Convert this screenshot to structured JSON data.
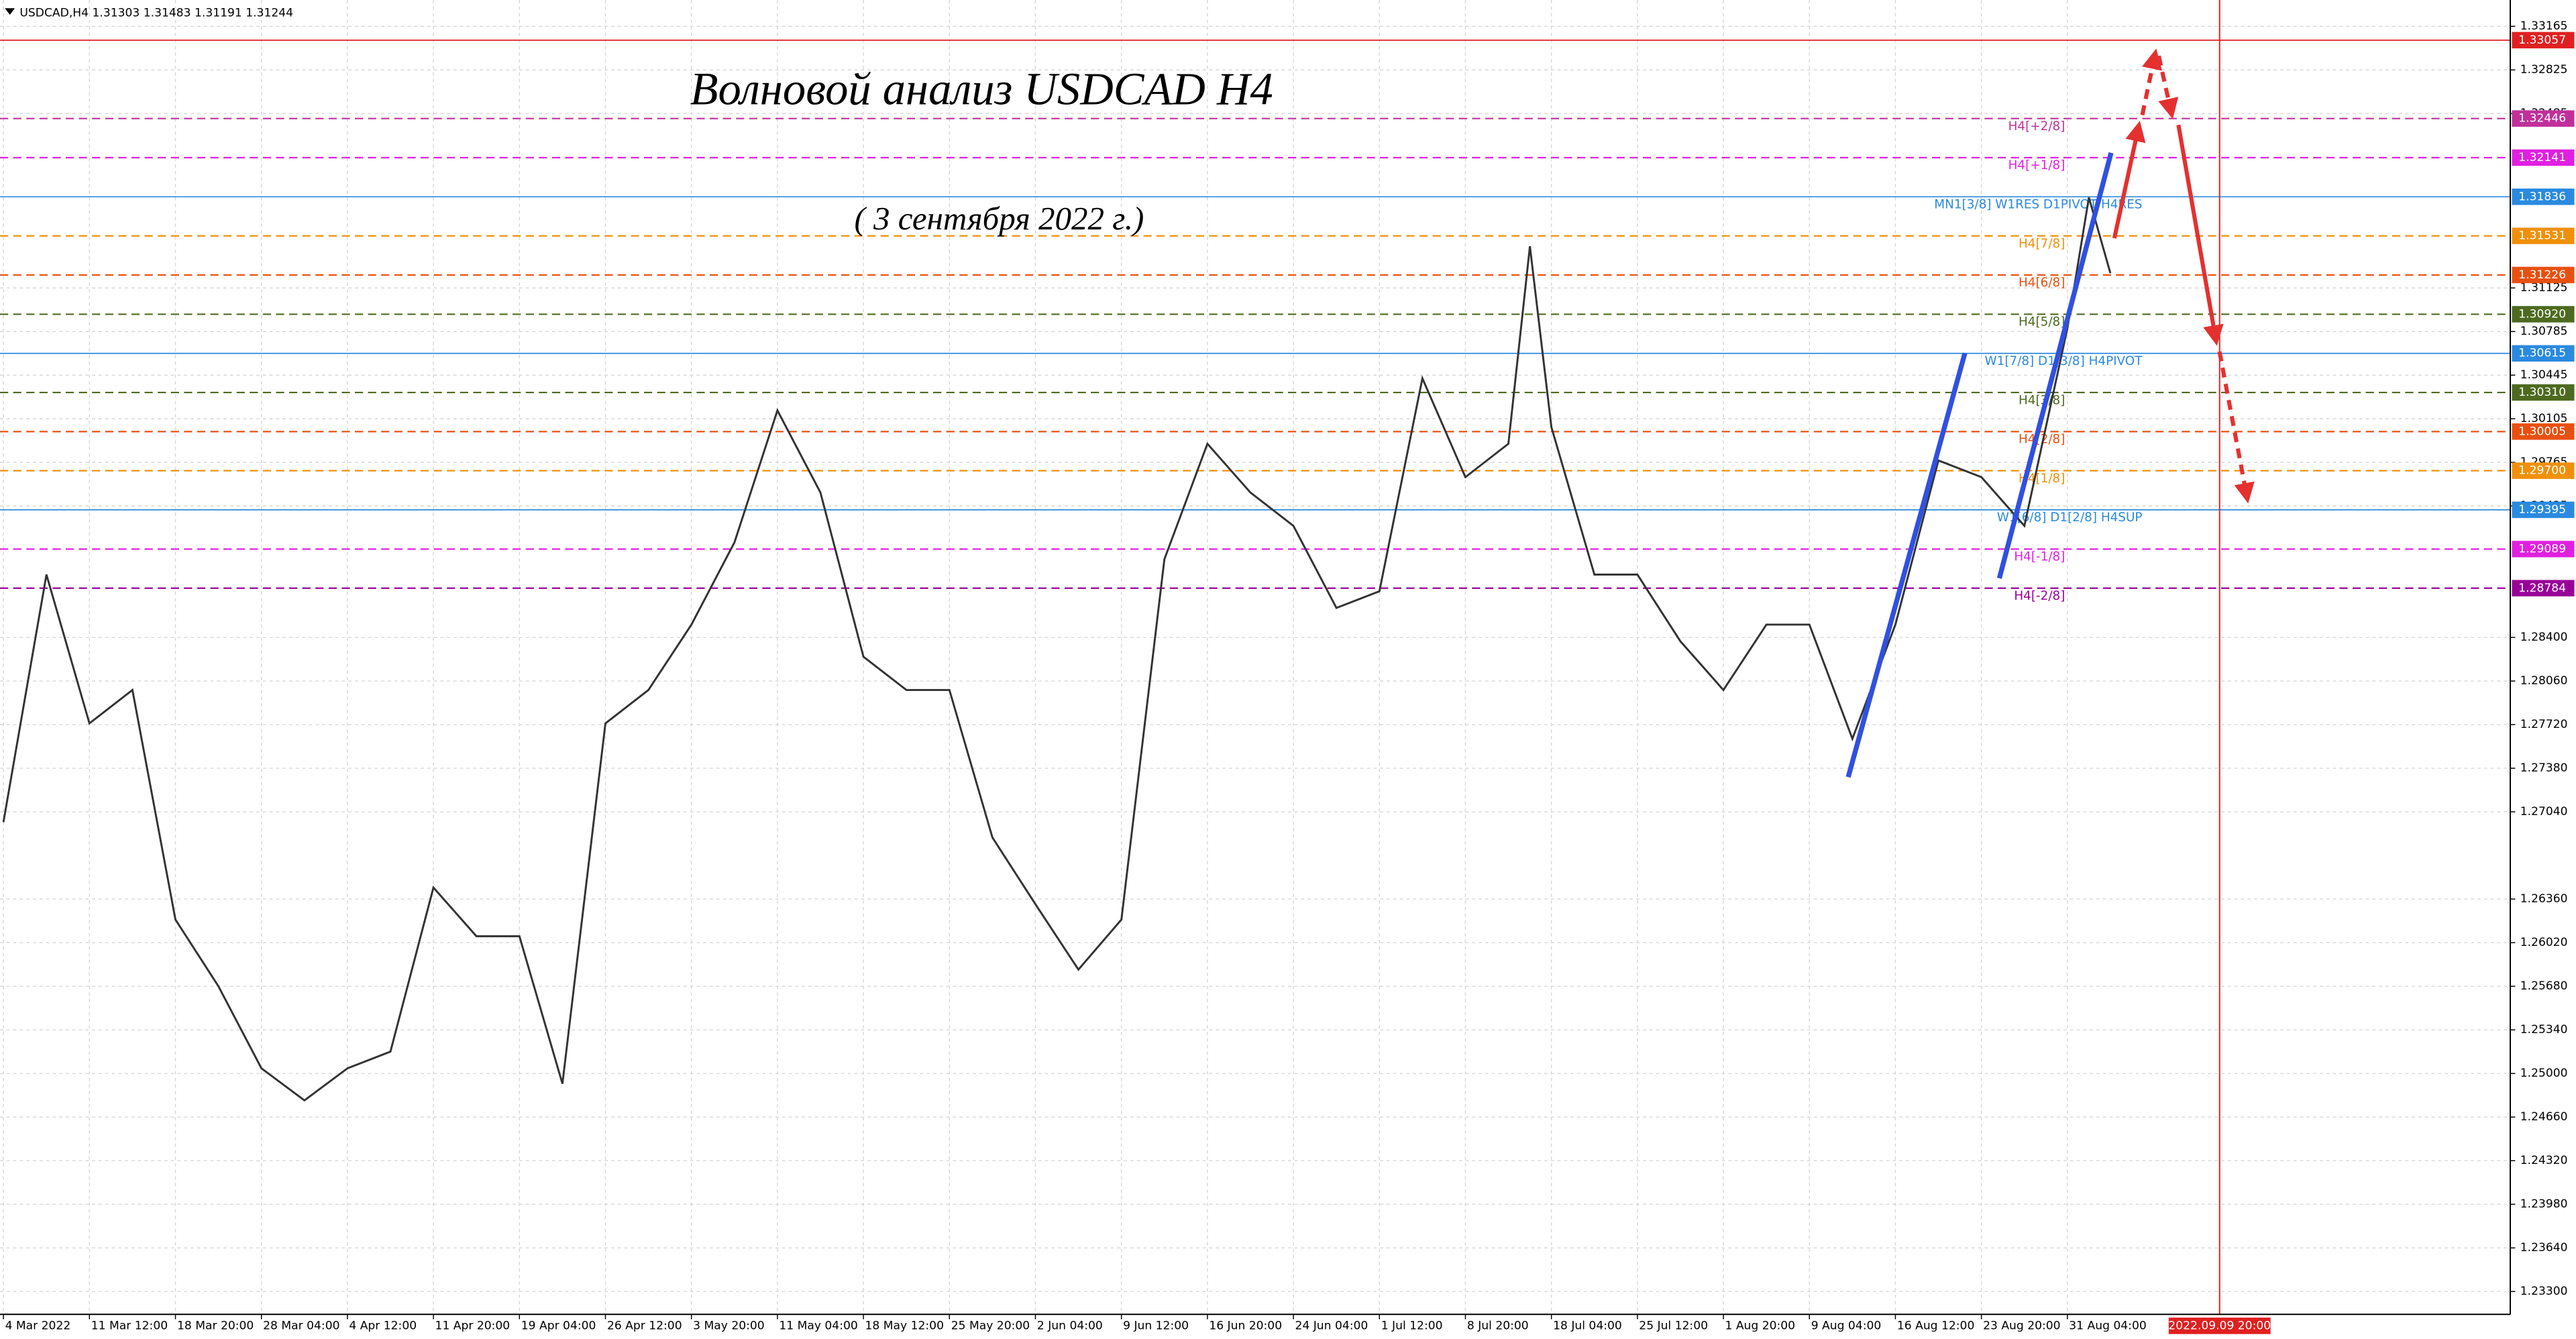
{
  "header": "USDCAD,H4  1.31303 1.31483 1.31191 1.31244",
  "chart_data": {
    "type": "line",
    "title": "Волновой анализ USDCAD H4",
    "subtitle": "( 3 сентября 2022 г.)",
    "xlim": [
      -0.04,
      29.15
    ],
    "ylim": [
      1.23122,
      1.3337
    ],
    "grid": true,
    "xticks": [
      {
        "value": 0,
        "label": "4 Mar 2022"
      },
      {
        "value": 1,
        "label": "11 Mar 12:00"
      },
      {
        "value": 2,
        "label": "18 Mar 20:00"
      },
      {
        "value": 3,
        "label": "28 Mar 04:00"
      },
      {
        "value": 4,
        "label": "4 Apr 12:00"
      },
      {
        "value": 5,
        "label": "11 Apr 20:00"
      },
      {
        "value": 6,
        "label": "19 Apr 04:00"
      },
      {
        "value": 7,
        "label": "26 Apr 12:00"
      },
      {
        "value": 8,
        "label": "3 May 20:00"
      },
      {
        "value": 9,
        "label": "11 May 04:00"
      },
      {
        "value": 10,
        "label": "18 May 12:00"
      },
      {
        "value": 11,
        "label": "25 May 20:00"
      },
      {
        "value": 12,
        "label": "2 Jun 04:00"
      },
      {
        "value": 13,
        "label": "9 Jun 12:00"
      },
      {
        "value": 14,
        "label": "16 Jun 20:00"
      },
      {
        "value": 15,
        "label": "24 Jun 04:00"
      },
      {
        "value": 16,
        "label": "1 Jul 12:00"
      },
      {
        "value": 17,
        "label": "8 Jul 20:00"
      },
      {
        "value": 18,
        "label": "18 Jul 04:00"
      },
      {
        "value": 19,
        "label": "25 Jul 12:00"
      },
      {
        "value": 20,
        "label": "1 Aug 20:00"
      },
      {
        "value": 21,
        "label": "9 Aug 04:00"
      },
      {
        "value": 22,
        "label": "16 Aug 12:00"
      },
      {
        "value": 23,
        "label": "23 Aug 20:00"
      },
      {
        "value": 24,
        "label": "31 Aug 04:00"
      }
    ],
    "yticks": [
      1.33165,
      1.32825,
      1.32485,
      1.31125,
      1.30785,
      1.30445,
      1.30105,
      1.29765,
      1.29425,
      {
        "value": 1.284,
        "label": "1.28400"
      },
      {
        "value": 1.2806,
        "label": "1.28060"
      },
      {
        "value": 1.2772,
        "label": "1.27720"
      },
      {
        "value": 1.2738,
        "label": "1.27380"
      },
      {
        "value": 1.2704,
        "label": "1.27040"
      },
      {
        "value": 1.2636,
        "label": "1.26360"
      },
      {
        "value": 1.2602,
        "label": "1.26020"
      },
      {
        "value": 1.2568,
        "label": "1.25680"
      },
      {
        "value": 1.2534,
        "label": "1.25340"
      },
      {
        "value": 1.25,
        "label": "1.25000"
      },
      {
        "value": 1.2466,
        "label": "1.24660"
      },
      {
        "value": 1.2432,
        "label": "1.24320"
      },
      {
        "value": 1.2398,
        "label": "1.23980"
      },
      {
        "value": 1.2364,
        "label": "1.23640"
      },
      {
        "value": 1.233,
        "label": "1.23300"
      }
    ],
    "series": [
      {
        "name": "USDCAD",
        "color": "#333333",
        "x": [
          0,
          0.5,
          1,
          1.5,
          2,
          2.5,
          3,
          3.5,
          4,
          4.5,
          5,
          5.5,
          6,
          6.5,
          7,
          7.5,
          8,
          8.5,
          9,
          9.5,
          10,
          10.5,
          11,
          11.5,
          12,
          12.5,
          13,
          13.5,
          14,
          14.5,
          15,
          15.5,
          16,
          16.5,
          17,
          17.5,
          17.75,
          18,
          18.5,
          19,
          19.5,
          20,
          20.5,
          21,
          21.5,
          22,
          22.5,
          23,
          23.5,
          24,
          24.25,
          24.5
        ],
        "values": [
          1.2696,
          1.2889,
          1.2773,
          1.2799,
          1.262,
          1.2568,
          1.2504,
          1.2479,
          1.2504,
          1.2517,
          1.2645,
          1.2607,
          1.2607,
          1.2492,
          1.2773,
          1.2799,
          1.285,
          1.2914,
          1.3017,
          1.2953,
          1.2825,
          1.2799,
          1.2799,
          1.2684,
          1.2632,
          1.2581,
          1.262,
          1.2901,
          1.2991,
          1.2953,
          1.2927,
          1.2863,
          1.2876,
          1.3042,
          1.2965,
          1.2991,
          1.3145,
          1.3004,
          1.2889,
          1.2889,
          1.2837,
          1.2799,
          1.285,
          1.285,
          1.2761,
          1.285,
          1.2978,
          1.2965,
          1.2927,
          1.3081,
          1.3183,
          1.3124
        ]
      }
    ],
    "levels": [
      {
        "value": 1.33057,
        "color": "#e02020"
      },
      {
        "label": "H4[+2/8]",
        "value": 1.32446,
        "color": "#c0309a"
      },
      {
        "label": "H4[+1/8]",
        "value": 1.32141,
        "color": "#e020e0"
      },
      {
        "label": "MN1[3/8] W1RES D1PIVOT H4RES",
        "value": 1.31836,
        "color": "#2a8ae0"
      },
      {
        "label": "H4[7/8]",
        "value": 1.31531,
        "color": "#f0900a"
      },
      {
        "label": "H4[6/8]",
        "value": 1.31226,
        "color": "#e85010"
      },
      {
        "label": "H4[5/8]",
        "value": 1.3092,
        "value_label": "1.30920",
        "color": "#4d6a20"
      },
      {
        "label": "W1[7/8] D1[3/8] H4PIVOT",
        "value": 1.30615,
        "color": "#2a8ae0"
      },
      {
        "label": "H4[3/8]",
        "value": 1.3031,
        "value_label": "1.30310",
        "color": "#4d6a20"
      },
      {
        "label": "H4[2/8]",
        "value": 1.30005,
        "color": "#e85010"
      },
      {
        "label": "H4[1/8]",
        "value": 1.297,
        "value_label": "1.29700",
        "color": "#f0900a"
      },
      {
        "label": "W1[6/8] D1[2/8] H4SUP",
        "value": 1.29395,
        "color": "#2a8ae0"
      },
      {
        "label": "H4[-1/8]",
        "value": 1.29089,
        "color": "#e020e0"
      },
      {
        "label": "H4[-2/8]",
        "value": 1.28784,
        "color": "#990099"
      }
    ],
    "markers": [
      {
        "x": 25.77,
        "label": "2022.09.09 20:00",
        "color": "#e02020"
      }
    ]
  }
}
